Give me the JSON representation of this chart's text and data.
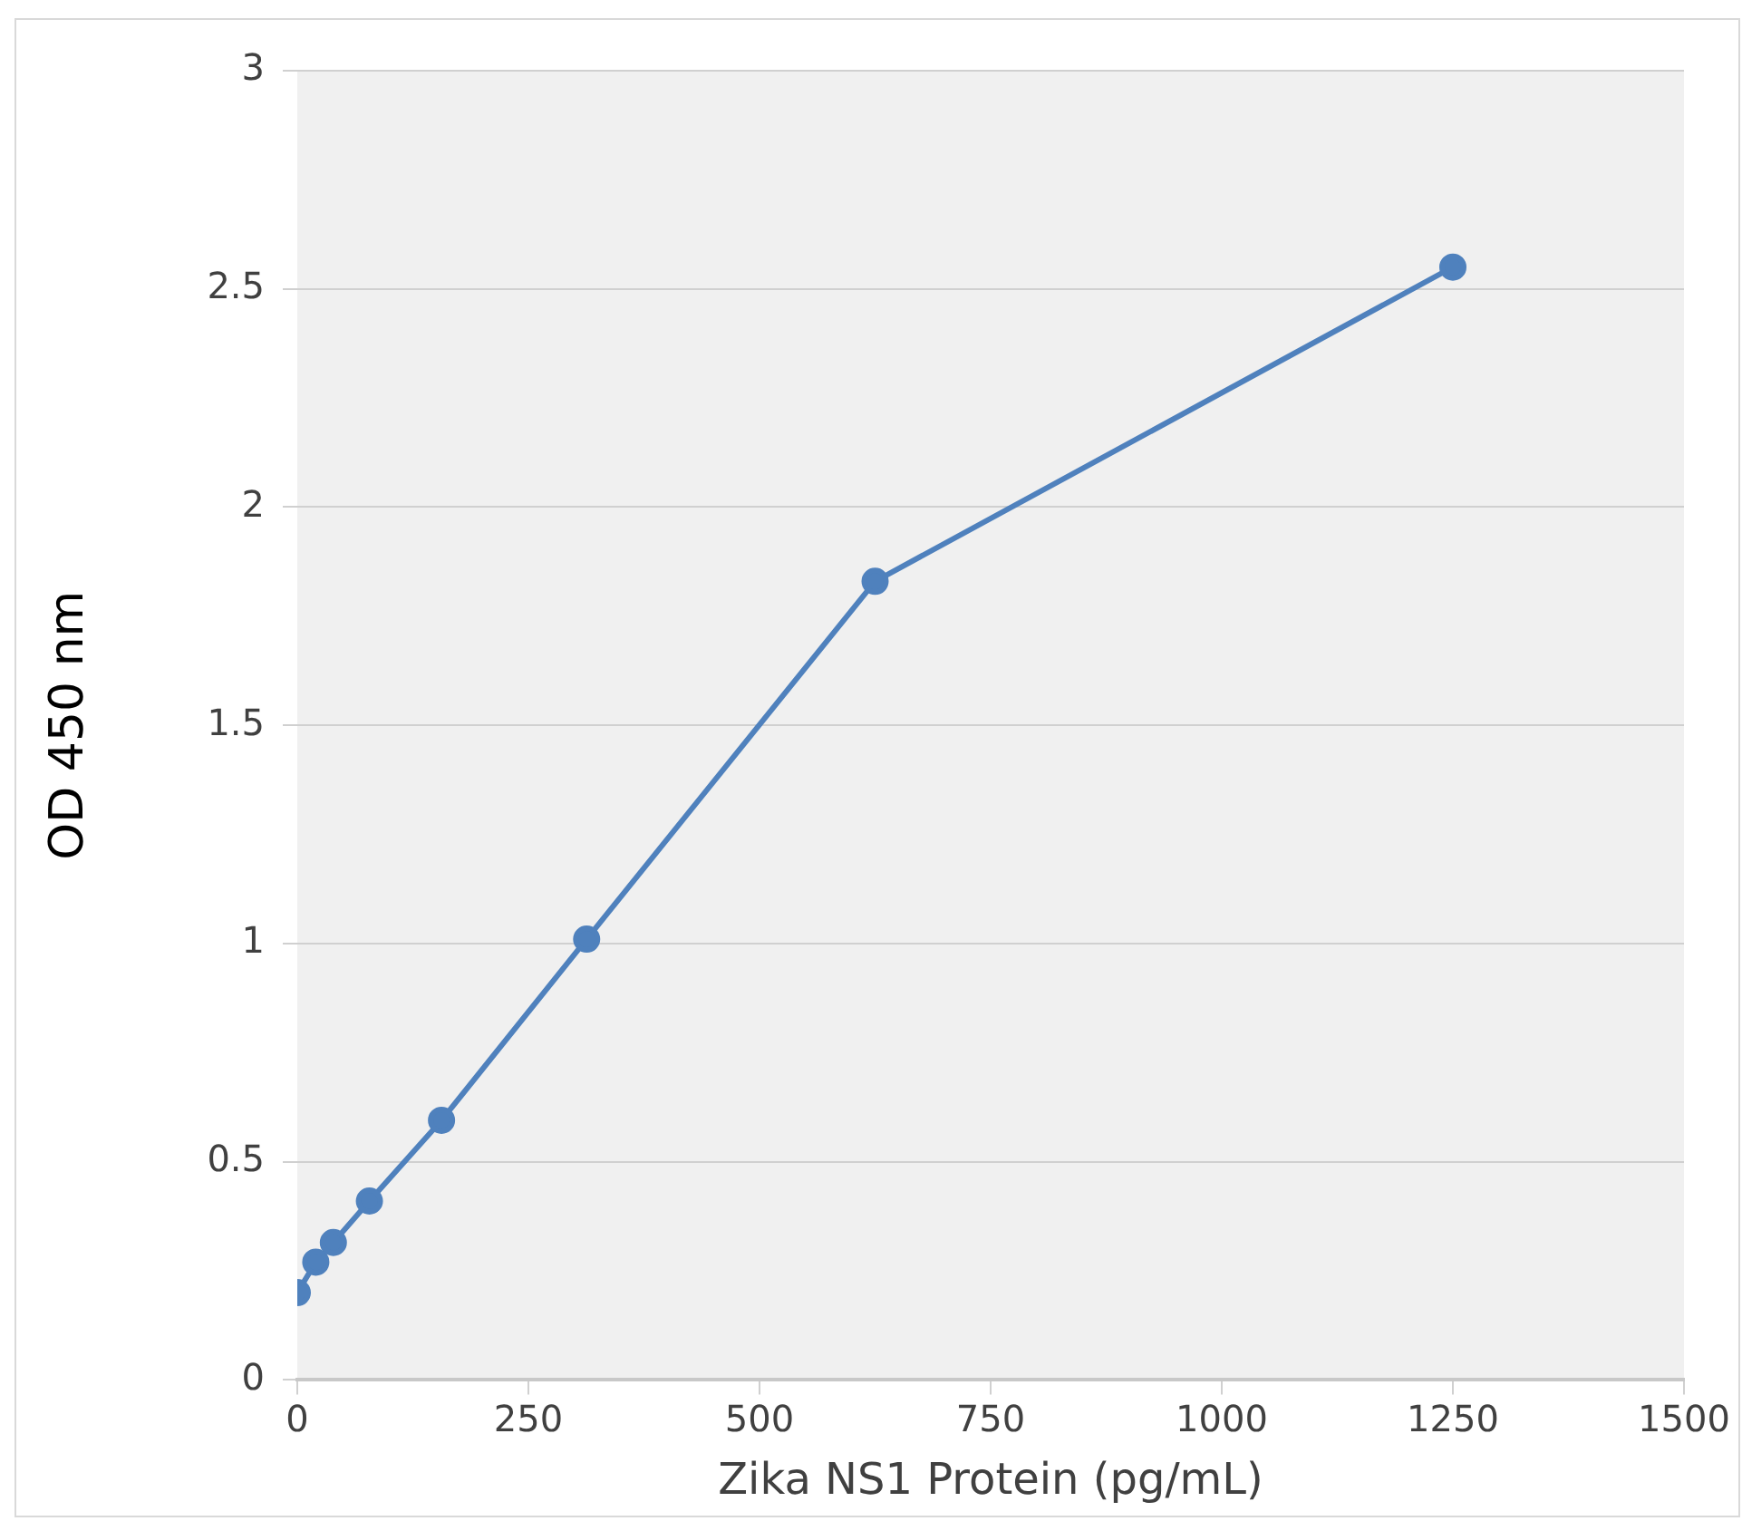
{
  "chart_data": {
    "type": "line",
    "xlabel": "Zika NS1 Protein (pg/mL)",
    "ylabel": "OD 450 nm",
    "x": [
      0,
      20,
      39,
      78,
      156,
      313,
      625,
      1250
    ],
    "series": [
      {
        "color": "#4f81bd",
        "values": [
          0.2,
          0.27,
          0.315,
          0.41,
          0.595,
          1.01,
          1.83,
          2.55
        ]
      }
    ],
    "xlim": [
      0,
      1500
    ],
    "xticks": [
      0,
      250,
      500,
      750,
      1000,
      1250,
      1500
    ],
    "ylim": [
      0,
      3
    ],
    "yticks": [
      0,
      0.5,
      1,
      1.5,
      2,
      2.5,
      3
    ],
    "grid": "y",
    "legend": false,
    "marker": "circle",
    "line_style": "solid"
  }
}
